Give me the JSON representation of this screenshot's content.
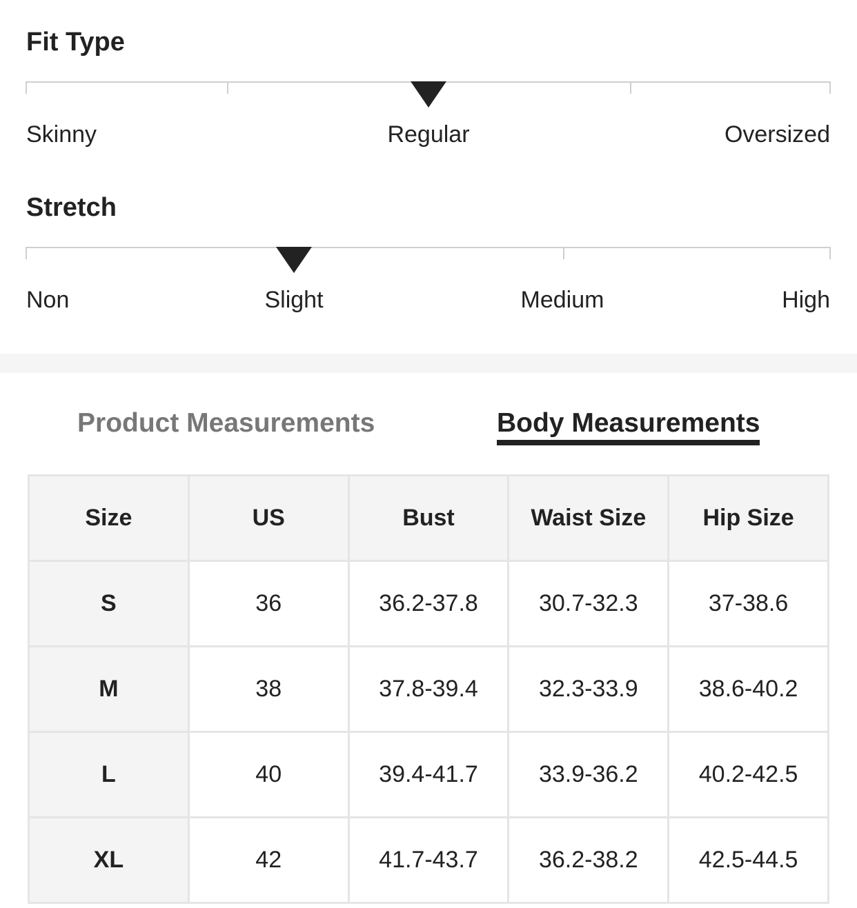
{
  "fit_type": {
    "title": "Fit Type",
    "labels": [
      "Skinny",
      "Regular",
      "Oversized"
    ],
    "selected": "Regular"
  },
  "stretch": {
    "title": "Stretch",
    "labels": [
      "Non",
      "Slight",
      "Medium",
      "High"
    ],
    "selected": "Slight"
  },
  "tabs": [
    {
      "label": "Product Measurements",
      "active": false
    },
    {
      "label": "Body Measurements",
      "active": true
    }
  ],
  "colors": {
    "text": "#222222",
    "inactive_tab": "#777777",
    "header_bg": "#f4f4f4",
    "border": "#e5e5e5"
  },
  "table": {
    "headers": [
      "Size",
      "US",
      "Bust",
      "Waist Size",
      "Hip Size"
    ],
    "rows": [
      [
        "S",
        "36",
        "36.2-37.8",
        "30.7-32.3",
        "37-38.6"
      ],
      [
        "M",
        "38",
        "37.8-39.4",
        "32.3-33.9",
        "38.6-40.2"
      ],
      [
        "L",
        "40",
        "39.4-41.7",
        "33.9-36.2",
        "40.2-42.5"
      ],
      [
        "XL",
        "42",
        "41.7-43.7",
        "36.2-38.2",
        "42.5-44.5"
      ]
    ]
  }
}
